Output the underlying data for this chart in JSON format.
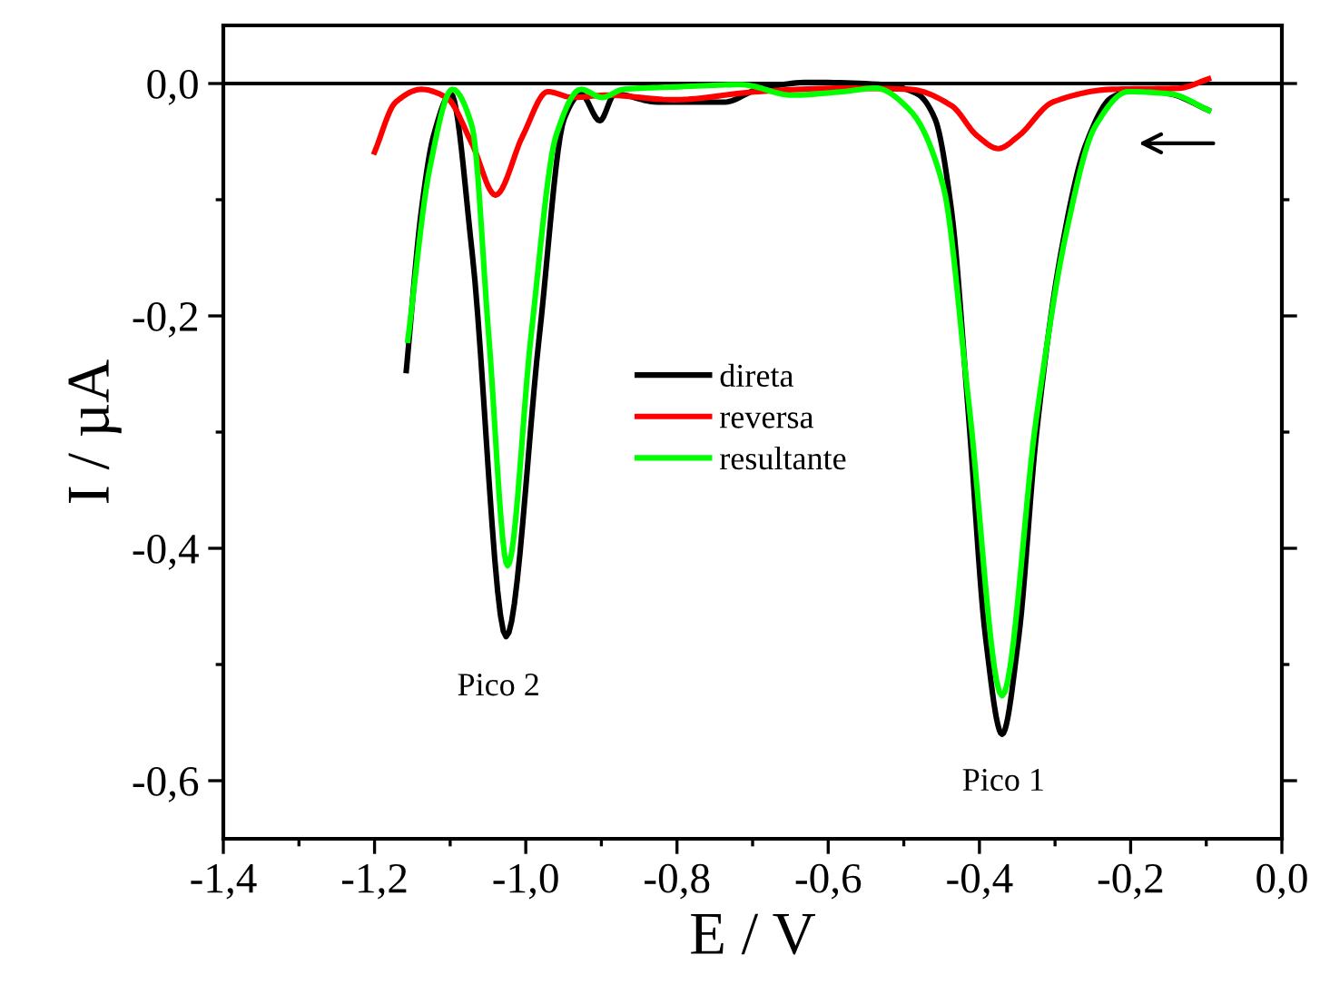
{
  "chart_data": {
    "type": "line",
    "xlabel": "E / V",
    "ylabel": "I / µA",
    "xlim": [
      -1.4,
      0.0
    ],
    "xticks": [
      {
        "value": -1.4,
        "label": "-1,4"
      },
      {
        "value": -1.2,
        "label": "-1,2"
      },
      {
        "value": -1.0,
        "label": "-1,0"
      },
      {
        "value": -0.8,
        "label": "-0,8"
      },
      {
        "value": -0.6,
        "label": "-0,6"
      },
      {
        "value": -0.4,
        "label": "-0,4"
      },
      {
        "value": -0.2,
        "label": "-0,2"
      },
      {
        "value": 0.0,
        "label": "0,0"
      }
    ],
    "ylim": [
      -0.65,
      0.05
    ],
    "yticks": [
      {
        "value": 0.0,
        "label": "0,0"
      },
      {
        "value": -0.2,
        "label": "-0,2"
      },
      {
        "value": -0.4,
        "label": "-0,4"
      },
      {
        "value": -0.6,
        "label": "-0,6"
      }
    ],
    "grid": false,
    "legend": "center",
    "marker": "none",
    "line_style": "solid",
    "ref_lines": [
      {
        "axis": "y",
        "value": 0.0,
        "color": "#000000"
      }
    ],
    "annotations": [
      "Pico 2",
      "Pico 1"
    ],
    "series": [
      {
        "name": "direta",
        "color": "#000000",
        "x": [
          -1.158,
          -1.138,
          -1.122,
          -1.099,
          -1.071,
          -1.026,
          -0.982,
          -0.949,
          -0.927,
          -0.902,
          -0.882,
          -0.826,
          -0.737,
          -0.693,
          -0.626,
          -0.526,
          -0.482,
          -0.459,
          -0.437,
          -0.414,
          -0.392,
          -0.37,
          -0.348,
          -0.325,
          -0.292,
          -0.259,
          -0.225,
          -0.192,
          -0.147,
          -0.097
        ],
        "values": [
          -0.247,
          -0.109,
          -0.045,
          -0.009,
          -0.145,
          -0.476,
          -0.217,
          -0.03,
          -0.009,
          -0.032,
          -0.009,
          -0.016,
          -0.016,
          -0.005,
          0.001,
          -0.001,
          -0.009,
          -0.03,
          -0.109,
          -0.289,
          -0.476,
          -0.56,
          -0.476,
          -0.304,
          -0.145,
          -0.052,
          -0.012,
          -0.005,
          -0.009,
          -0.023
        ]
      },
      {
        "name": "reversa",
        "color": "#ff0000",
        "x": [
          -1.2,
          -1.172,
          -1.138,
          -1.105,
          -1.071,
          -1.04,
          -1.004,
          -0.971,
          -0.938,
          -0.893,
          -0.804,
          -0.693,
          -0.581,
          -0.492,
          -0.437,
          -0.403,
          -0.375,
          -0.348,
          -0.303,
          -0.225,
          -0.136,
          -0.097
        ],
        "values": [
          -0.059,
          -0.016,
          -0.005,
          -0.012,
          -0.052,
          -0.096,
          -0.045,
          -0.007,
          -0.012,
          -0.01,
          -0.014,
          -0.007,
          -0.004,
          -0.005,
          -0.019,
          -0.045,
          -0.056,
          -0.045,
          -0.016,
          -0.005,
          -0.004,
          0.004
        ]
      },
      {
        "name": "resultante",
        "color": "#00ff00",
        "x": [
          -1.156,
          -1.127,
          -1.097,
          -1.071,
          -1.049,
          -1.024,
          -0.993,
          -0.96,
          -0.927,
          -0.899,
          -0.871,
          -0.804,
          -0.715,
          -0.648,
          -0.581,
          -0.537,
          -0.492,
          -0.448,
          -0.414,
          -0.37,
          -0.325,
          -0.286,
          -0.247,
          -0.203,
          -0.147,
          -0.097
        ],
        "values": [
          -0.221,
          -0.073,
          -0.005,
          -0.037,
          -0.217,
          -0.415,
          -0.217,
          -0.045,
          -0.005,
          -0.012,
          -0.005,
          -0.003,
          -0.001,
          -0.01,
          -0.007,
          -0.004,
          -0.023,
          -0.088,
          -0.275,
          -0.527,
          -0.289,
          -0.131,
          -0.037,
          -0.007,
          -0.009,
          -0.023
        ]
      }
    ]
  }
}
